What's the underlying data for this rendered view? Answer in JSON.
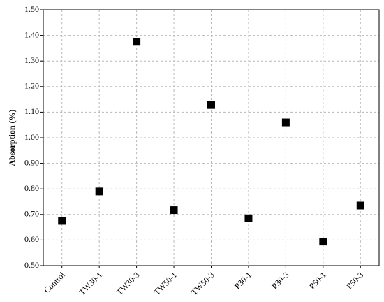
{
  "chart_data": {
    "type": "scatter",
    "y_label": "Absorption (%)",
    "categories": [
      "Control",
      "TW30-1",
      "TW30-3",
      "TW50-1",
      "TW50-3",
      "P30-1",
      "P30-3",
      "P50-1",
      "P50-3"
    ],
    "values": [
      0.675,
      0.79,
      1.375,
      0.717,
      1.128,
      0.685,
      1.06,
      0.594,
      0.735
    ],
    "color": "#000000",
    "marker": "square",
    "ylim": [
      0.5,
      1.5
    ],
    "yticks": [
      {
        "value": 0.5,
        "label": "0.50"
      },
      {
        "value": 0.6,
        "label": "0.60"
      },
      {
        "value": 0.7,
        "label": "0.70"
      },
      {
        "value": 0.8,
        "label": "0.80"
      },
      {
        "value": 0.9,
        "label": "0.90"
      },
      {
        "value": 1.0,
        "label": "1.00"
      },
      {
        "value": 1.1,
        "label": "1.10"
      },
      {
        "value": 1.2,
        "label": "1.20"
      },
      {
        "value": 1.3,
        "label": "1.30"
      },
      {
        "value": 1.4,
        "label": "1.40"
      },
      {
        "value": 1.5,
        "label": "1.50"
      }
    ],
    "grid": true
  }
}
